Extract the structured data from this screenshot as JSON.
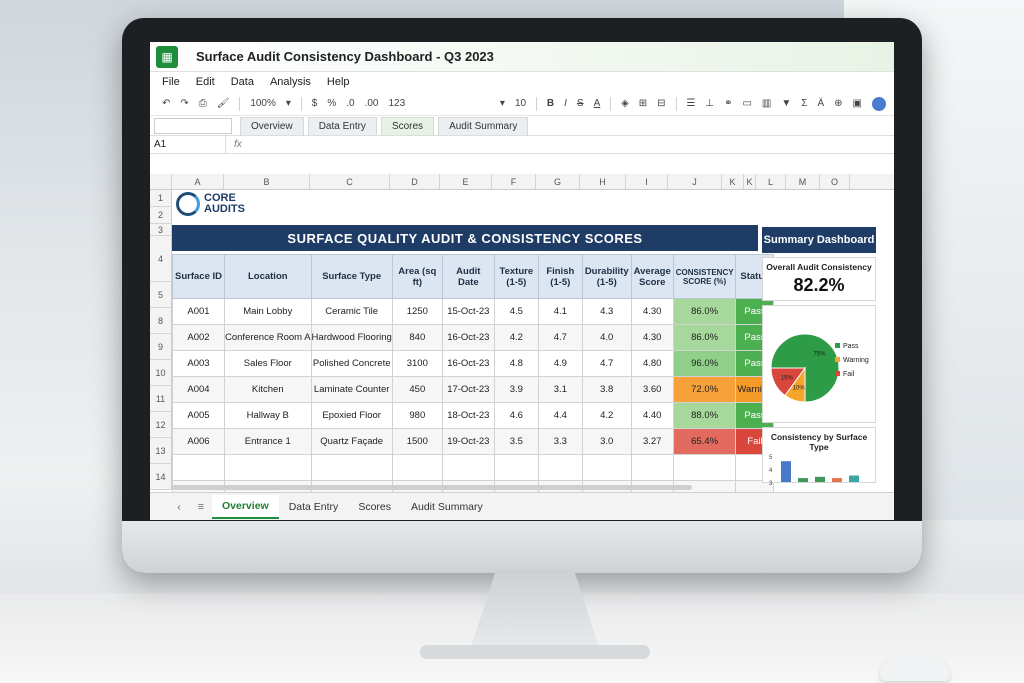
{
  "window": {
    "title": "Surface Audit Consistency Dashboard - Q3 2023"
  },
  "menu": [
    "File",
    "Edit",
    "Data",
    "Analysis",
    "Help"
  ],
  "toolbar": {
    "zoom": "100%",
    "currency": "$",
    "percent": "%",
    "decimals_less": ".0",
    "decimals_more": ".00",
    "number_format": "123",
    "font_size": "10"
  },
  "formula_tabs": [
    "Overview",
    "Data Entry",
    "Scores",
    "Audit Summary"
  ],
  "formula_bar": {
    "cell": "A1",
    "fx": "fx"
  },
  "columns": [
    "A",
    "B",
    "C",
    "D",
    "E",
    "F",
    "G",
    "H",
    "I",
    "J",
    "K",
    "K",
    "L",
    "M",
    "O"
  ],
  "row_numbers": [
    "1",
    "2",
    "3",
    "4",
    "5",
    "8",
    "9",
    "10",
    "11",
    "12",
    "13",
    "14"
  ],
  "logo": {
    "line1": "CORE",
    "line2": "AUDITS"
  },
  "banner": "SURFACE QUALITY AUDIT & CONSISTENCY SCORES",
  "table": {
    "headers": [
      "Surface ID",
      "Location",
      "Surface Type",
      "Area (sq ft)",
      "Audit Date",
      "Texture (1-5)",
      "Finish (1-5)",
      "Durability (1-5)",
      "Average Score",
      "CONSISTENCY SCORE (%)",
      "Status"
    ],
    "rows": [
      [
        "A001",
        "Main Lobby",
        "Ceramic Tile",
        "1250",
        "15-Oct-23",
        "4.5",
        "4.1",
        "4.3",
        "4.30",
        "86.0%",
        "Pass"
      ],
      [
        "A002",
        "Conference Room A",
        "Hardwood Flooring",
        "840",
        "16-Oct-23",
        "4.2",
        "4.7",
        "4.0",
        "4.30",
        "86.0%",
        "Pass"
      ],
      [
        "A003",
        "Sales Floor",
        "Polished Concrete",
        "3100",
        "16-Oct-23",
        "4.8",
        "4.9",
        "4.7",
        "4.80",
        "96.0%",
        "Pass"
      ],
      [
        "A004",
        "Kitchen",
        "Laminate Counter",
        "450",
        "17-Oct-23",
        "3.9",
        "3.1",
        "3.8",
        "3.60",
        "72.0%",
        "Warning"
      ],
      [
        "A005",
        "Hallway B",
        "Epoxied Floor",
        "980",
        "18-Oct-23",
        "4.6",
        "4.4",
        "4.2",
        "4.40",
        "88.0%",
        "Pass"
      ],
      [
        "A006",
        "Entrance 1",
        "Quartz Façade",
        "1500",
        "19-Oct-23",
        "3.5",
        "3.3",
        "3.0",
        "3.27",
        "65.4%",
        "Fail"
      ]
    ]
  },
  "summary": {
    "header": "Summary Dashboard",
    "overall_label": "Overall Audit Consistency",
    "overall_value": "82.2%",
    "pie_legend": [
      "Pass",
      "Warning",
      "Fail"
    ],
    "by_type_title": "Consistency by Surface Type",
    "by_type_ticks": [
      "5",
      "4",
      "3"
    ]
  },
  "chart_data": [
    {
      "type": "pie",
      "labels": [
        "Pass",
        "Warning",
        "Fail"
      ],
      "values": [
        75,
        10,
        15
      ],
      "colors": [
        "#2e9b46",
        "#f5a52c",
        "#d9463b"
      ]
    },
    {
      "type": "bar",
      "title": "Consistency by Surface Type",
      "values": [
        4.6,
        3.3,
        3.4,
        3.3,
        3.5
      ],
      "colors": [
        "#4a78c8",
        "#3d9b57",
        "#3d9b57",
        "#e5734a",
        "#3aa7a7"
      ],
      "ylim": [
        3,
        5
      ]
    }
  ],
  "sheet_tabs": [
    "Overview",
    "Data Entry",
    "Scores",
    "Audit Summary"
  ],
  "colors": {
    "header_navy": "#1f3c66",
    "app_green": "#1e8e3e"
  }
}
